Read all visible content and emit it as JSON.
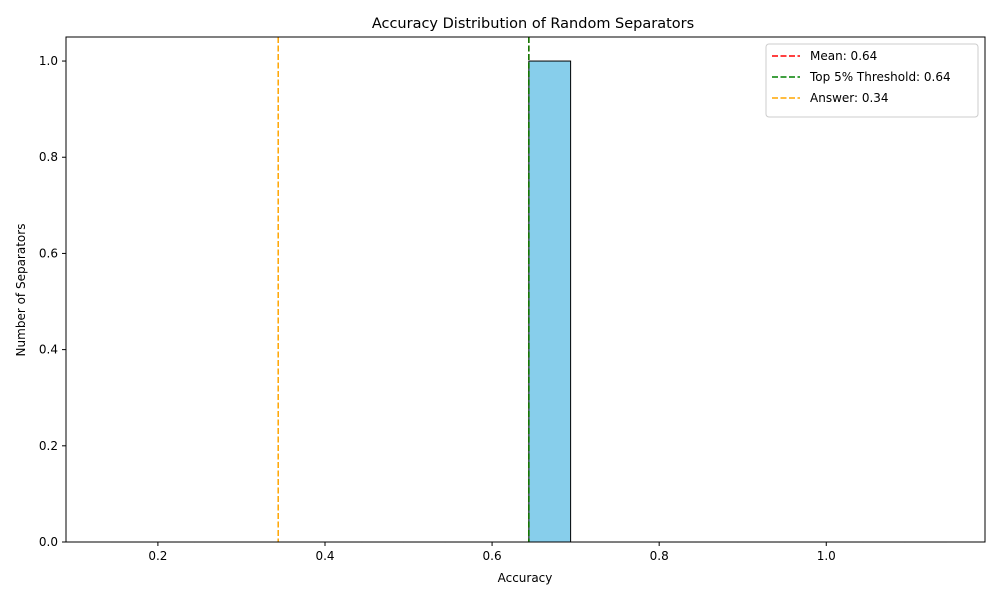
{
  "chart_data": {
    "type": "bar",
    "title": "Accuracy Distribution of Random Separators",
    "xlabel": "Accuracy",
    "ylabel": "Number of Separators",
    "xlim": [
      0.09,
      1.19
    ],
    "ylim": [
      0,
      1.05
    ],
    "x_ticks": [
      0.2,
      0.4,
      0.6,
      0.8,
      1.0
    ],
    "x_tick_labels": [
      "0.2",
      "0.4",
      "0.6",
      "0.8",
      "1.0"
    ],
    "y_ticks": [
      0.0,
      0.2,
      0.4,
      0.6,
      0.8,
      1.0
    ],
    "y_tick_labels": [
      "0.0",
      "0.2",
      "0.4",
      "0.6",
      "0.8",
      "1.0"
    ],
    "bins": {
      "start": 0.144,
      "width": 0.05,
      "counts": [
        0,
        0,
        0,
        0,
        0,
        0,
        0,
        0,
        0,
        0,
        1,
        0,
        0,
        0,
        0,
        0,
        0,
        0,
        0,
        0
      ]
    },
    "bar_color": "#87CEEB",
    "bar_edge_color": "#000000",
    "reference_lines": [
      {
        "label": "Mean: 0.64",
        "x": 0.644,
        "color": "#ff0000"
      },
      {
        "label": "Top 5% Threshold: 0.64",
        "x": 0.644,
        "color": "#008000"
      },
      {
        "label": "Answer: 0.34",
        "x": 0.344,
        "color": "#ffa500"
      }
    ],
    "legend_position": "top-right",
    "grid": false
  }
}
